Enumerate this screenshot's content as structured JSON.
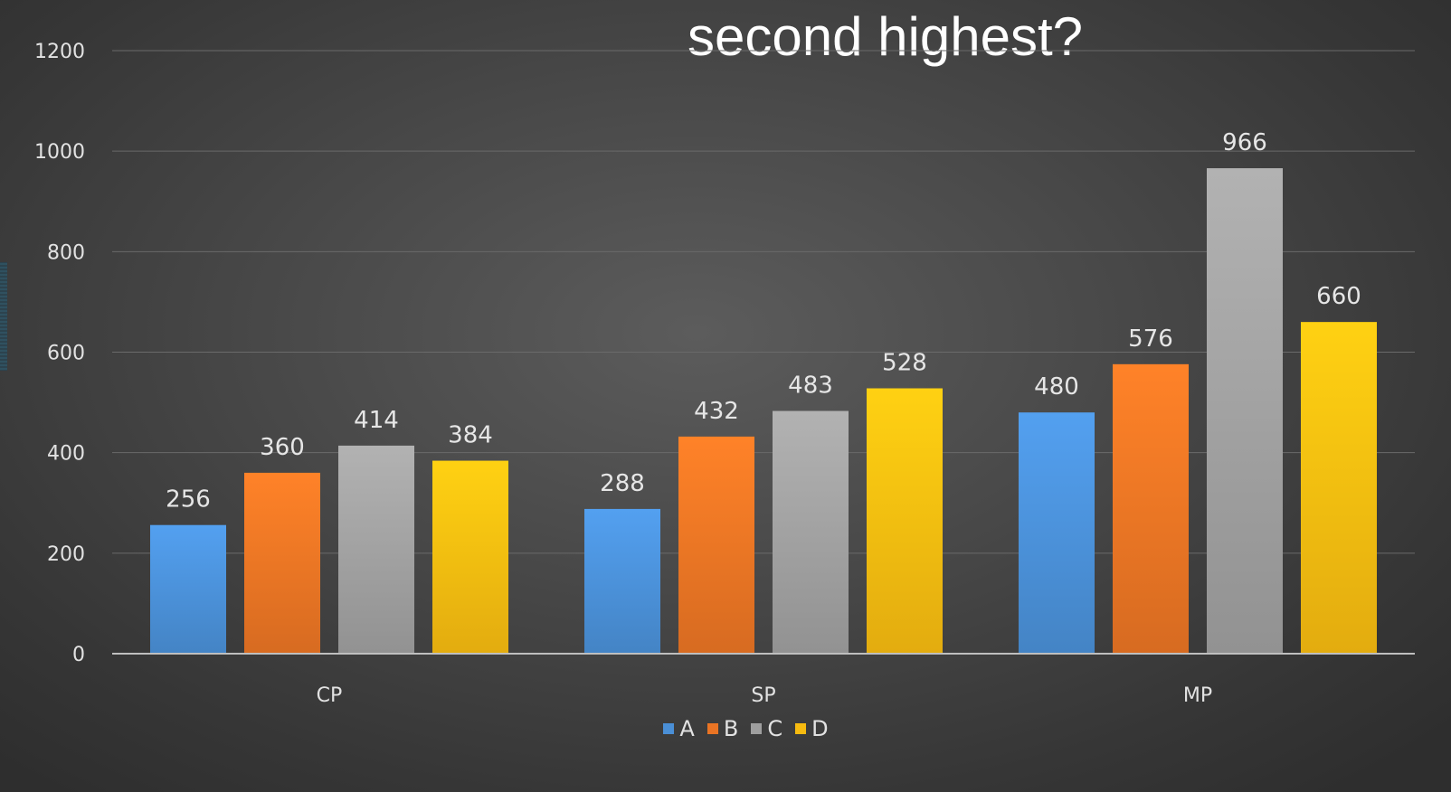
{
  "slide": {
    "title": "second highest?"
  },
  "colors": {
    "A": "#4a8fd6",
    "B": "#ea7424",
    "C": "#9f9f9f",
    "D": "#f7bb10",
    "gridline": "#6a6a6a",
    "axis": "#bfbfbf",
    "text": "#e2e2e2"
  },
  "chart_data": {
    "type": "bar",
    "title": "",
    "xlabel": "",
    "ylabel": "",
    "categories": [
      "CP",
      "SP",
      "MP"
    ],
    "series": [
      {
        "name": "A",
        "values": [
          256,
          288,
          480
        ]
      },
      {
        "name": "B",
        "values": [
          360,
          432,
          576
        ]
      },
      {
        "name": "C",
        "values": [
          414,
          483,
          966
        ]
      },
      {
        "name": "D",
        "values": [
          384,
          528,
          660
        ]
      }
    ],
    "yticks": [
      "0",
      "200",
      "400",
      "600",
      "800",
      "1000",
      "1200"
    ],
    "ylim": [
      0,
      1200
    ],
    "grid": true,
    "legend": "bottom",
    "data_labels": true
  }
}
